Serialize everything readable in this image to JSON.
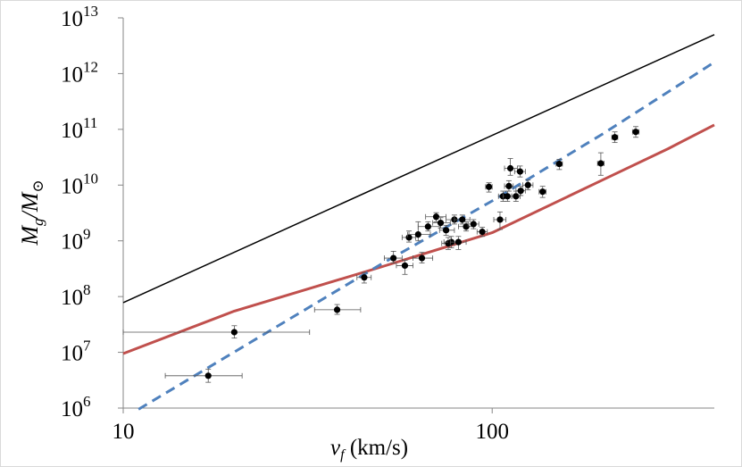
{
  "chart_data": {
    "type": "scatter",
    "xscale": "log",
    "yscale": "log",
    "xlim": [
      10,
      400
    ],
    "ylim": [
      1000000,
      10000000000000
    ],
    "xticks": [
      {
        "value": 10,
        "label": "10"
      },
      {
        "value": 100,
        "label": "100"
      }
    ],
    "yticks": [
      {
        "value": 1000000,
        "base": "10",
        "exp": "6"
      },
      {
        "value": 10000000,
        "base": "10",
        "exp": "7"
      },
      {
        "value": 100000000,
        "base": "10",
        "exp": "8"
      },
      {
        "value": 1000000000,
        "base": "10",
        "exp": "9"
      },
      {
        "value": 10000000000,
        "base": "10",
        "exp": "10"
      },
      {
        "value": 100000000000,
        "base": "10",
        "exp": "11"
      },
      {
        "value": 1000000000000,
        "base": "10",
        "exp": "12"
      },
      {
        "value": 10000000000000,
        "base": "10",
        "exp": "13"
      }
    ],
    "xlabel": {
      "var": "v",
      "sub": "f",
      "unit": " (km/s)"
    },
    "ylabel": {
      "num": "M",
      "num_sub": "g",
      "sep": "/",
      "den": "M",
      "den_sub": "⊙"
    },
    "grid": false,
    "legend": "none",
    "lines": [
      {
        "color": "#000000",
        "style": "solid",
        "x": [
          10,
          400
        ],
        "y": [
          78000000,
          5000000000000
        ]
      },
      {
        "color": "#c0504d",
        "style": "solid",
        "x": [
          10,
          20,
          50,
          100,
          200,
          300,
          400
        ],
        "y": [
          9500000,
          55000000,
          340000000,
          1400000000,
          12500000000,
          45000000000,
          120000000000
        ]
      },
      {
        "color": "#4f81bd",
        "style": "dashed",
        "x": [
          11,
          50,
          100,
          200,
          400
        ],
        "y": [
          950000,
          380000000,
          5200000000,
          84000000000,
          1600000000000
        ]
      }
    ],
    "points": [
      {
        "x": 17,
        "y": 3800000,
        "xlo": 13,
        "xhi": 21,
        "ylo": 2900000,
        "yhi": 5000000
      },
      {
        "x": 20,
        "y": 23000000,
        "xlo": 10,
        "xhi": 32,
        "ylo": 18000000,
        "yhi": 30000000
      },
      {
        "x": 38,
        "y": 58000000,
        "xlo": 33,
        "xhi": 44,
        "ylo": 48000000,
        "yhi": 72000000
      },
      {
        "x": 45,
        "y": 220000000,
        "xlo": 43,
        "xhi": 47,
        "ylo": 175000000,
        "yhi": 270000000
      },
      {
        "x": 54,
        "y": 490000000,
        "xlo": 51,
        "xhi": 57,
        "ylo": 400000000,
        "yhi": 650000000
      },
      {
        "x": 58,
        "y": 360000000,
        "xlo": 55,
        "xhi": 61,
        "ylo": 250000000,
        "yhi": 450000000
      },
      {
        "x": 59.5,
        "y": 1150000000,
        "xlo": 57,
        "xhi": 62,
        "ylo": 950000000,
        "yhi": 1500000000
      },
      {
        "x": 63,
        "y": 1300000000,
        "xlo": 59,
        "xhi": 68,
        "ylo": 1000000000,
        "yhi": 2200000000
      },
      {
        "x": 64.5,
        "y": 490000000,
        "xlo": 61,
        "xhi": 69,
        "ylo": 400000000,
        "yhi": 620000000
      },
      {
        "x": 67,
        "y": 1800000000,
        "xlo": 63,
        "xhi": 72,
        "ylo": 1500000000,
        "yhi": 2200000000
      },
      {
        "x": 70.5,
        "y": 2700000000,
        "xlo": 66,
        "xhi": 75,
        "ylo": 2200000000,
        "yhi": 3200000000
      },
      {
        "x": 72.5,
        "y": 2100000000,
        "xlo": 69,
        "xhi": 77,
        "ylo": 1700000000,
        "yhi": 2600000000
      },
      {
        "x": 75,
        "y": 1550000000,
        "xlo": 72,
        "xhi": 79,
        "ylo": 1250000000,
        "yhi": 1900000000
      },
      {
        "x": 76,
        "y": 900000000,
        "xlo": 73,
        "xhi": 79,
        "ylo": 700000000,
        "yhi": 1150000000
      },
      {
        "x": 77.5,
        "y": 950000000,
        "xlo": 74,
        "xhi": 81,
        "ylo": 750000000,
        "yhi": 1200000000
      },
      {
        "x": 79,
        "y": 2400000000,
        "xlo": 75,
        "xhi": 83,
        "ylo": 2000000000,
        "yhi": 2900000000
      },
      {
        "x": 81,
        "y": 950000000,
        "xlo": 77,
        "xhi": 85,
        "ylo": 700000000,
        "yhi": 1200000000
      },
      {
        "x": 83,
        "y": 2400000000,
        "xlo": 79,
        "xhi": 87,
        "ylo": 2000000000,
        "yhi": 2900000000
      },
      {
        "x": 85,
        "y": 1800000000,
        "xlo": 81,
        "xhi": 89,
        "ylo": 1500000000,
        "yhi": 2200000000
      },
      {
        "x": 89,
        "y": 2000000000,
        "xlo": 86,
        "xhi": 92,
        "ylo": 1650000000,
        "yhi": 2400000000
      },
      {
        "x": 94,
        "y": 1450000000,
        "xlo": 91,
        "xhi": 97,
        "ylo": 1200000000,
        "yhi": 1750000000
      },
      {
        "x": 98,
        "y": 9300000000,
        "xlo": 96,
        "xhi": 100,
        "ylo": 7500000000,
        "yhi": 11000000000
      },
      {
        "x": 105,
        "y": 2400000000,
        "xlo": 101,
        "xhi": 109,
        "ylo": 1600000000,
        "yhi": 3300000000
      },
      {
        "x": 107,
        "y": 6300000000,
        "xlo": 104,
        "xhi": 110,
        "ylo": 5100000000,
        "yhi": 7800000000
      },
      {
        "x": 110,
        "y": 6300000000,
        "xlo": 107,
        "xhi": 113,
        "ylo": 5100000000,
        "yhi": 7800000000
      },
      {
        "x": 111,
        "y": 9600000000,
        "xlo": 108,
        "xhi": 114,
        "ylo": 7800000000,
        "yhi": 12000000000
      },
      {
        "x": 112,
        "y": 20000000000,
        "xlo": 108,
        "xhi": 117,
        "ylo": 15000000000,
        "yhi": 30000000000
      },
      {
        "x": 116,
        "y": 6300000000,
        "xlo": 113,
        "xhi": 119,
        "ylo": 5100000000,
        "yhi": 7800000000
      },
      {
        "x": 119,
        "y": 17500000000,
        "xlo": 115,
        "xhi": 123,
        "ylo": 14000000000,
        "yhi": 22000000000
      },
      {
        "x": 119.5,
        "y": 7900000000,
        "xlo": 116,
        "xhi": 123,
        "ylo": 6500000000,
        "yhi": 9500000000
      },
      {
        "x": 125,
        "y": 10000000000,
        "xlo": 121,
        "xhi": 129,
        "ylo": 8200000000,
        "yhi": 12300000000
      },
      {
        "x": 137,
        "y": 7600000000,
        "xlo": 134,
        "xhi": 140,
        "ylo": 6000000000,
        "yhi": 9500000000
      },
      {
        "x": 152,
        "y": 24000000000,
        "xlo": 149,
        "xhi": 155,
        "ylo": 19000000000,
        "yhi": 29000000000
      },
      {
        "x": 197,
        "y": 24500000000,
        "xlo": 193,
        "xhi": 201,
        "ylo": 15000000000,
        "yhi": 38000000000
      },
      {
        "x": 215,
        "y": 72000000000,
        "xlo": 211,
        "xhi": 219,
        "ylo": 58000000000,
        "yhi": 90000000000
      },
      {
        "x": 245,
        "y": 90000000000,
        "xlo": 240,
        "xhi": 250,
        "ylo": 72000000000,
        "yhi": 112000000000
      }
    ]
  }
}
